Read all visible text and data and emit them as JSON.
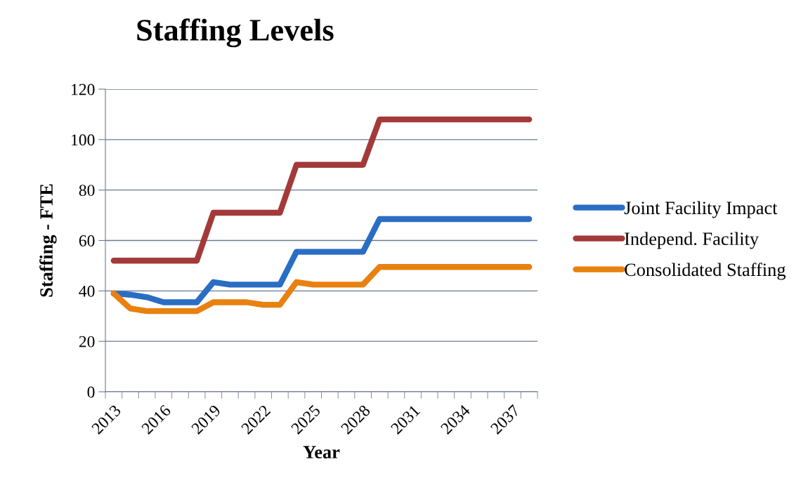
{
  "chart_data": {
    "type": "line",
    "title": "Staffing Levels",
    "xlabel": "Year",
    "ylabel": "Staffing - FTE",
    "categories": [
      "2013",
      null,
      null,
      "2016",
      null,
      null,
      "2019",
      null,
      null,
      "2022",
      null,
      null,
      "2025",
      null,
      null,
      "2028",
      null,
      null,
      "2031",
      null,
      null,
      "2034",
      null,
      null,
      "2037",
      null
    ],
    "series": [
      {
        "name": "Joint Facility Impact",
        "color": "#2a6ec4",
        "values": [
          39,
          38.5,
          37.5,
          35.5,
          35.5,
          35.5,
          43.5,
          42.5,
          42.5,
          42.5,
          42.5,
          55.5,
          55.5,
          55.5,
          55.5,
          55.5,
          68.5,
          68.5,
          68.5,
          68.5,
          68.5,
          68.5,
          68.5,
          68.5,
          68.5,
          68.5
        ]
      },
      {
        "name": "Independ. Facility",
        "color": "#a33a3a",
        "values": [
          52,
          52,
          52,
          52,
          52,
          52,
          71,
          71,
          71,
          71,
          71,
          90,
          90,
          90,
          90,
          90,
          108,
          108,
          108,
          108,
          108,
          108,
          108,
          108,
          108,
          108
        ]
      },
      {
        "name": "Consolidated Staffing",
        "color": "#e8810f",
        "values": [
          39,
          33,
          32,
          32,
          32,
          32,
          35.5,
          35.5,
          35.5,
          34.5,
          34.5,
          43.5,
          42.5,
          42.5,
          42.5,
          42.5,
          49.5,
          49.5,
          49.5,
          49.5,
          49.5,
          49.5,
          49.5,
          49.5,
          49.5,
          49.5
        ]
      }
    ],
    "ylim": [
      0,
      120
    ],
    "yticks": [
      0,
      20,
      40,
      60,
      80,
      100,
      120
    ],
    "grid": "y",
    "legend": "right",
    "marker": "none",
    "line_style": "solid"
  }
}
